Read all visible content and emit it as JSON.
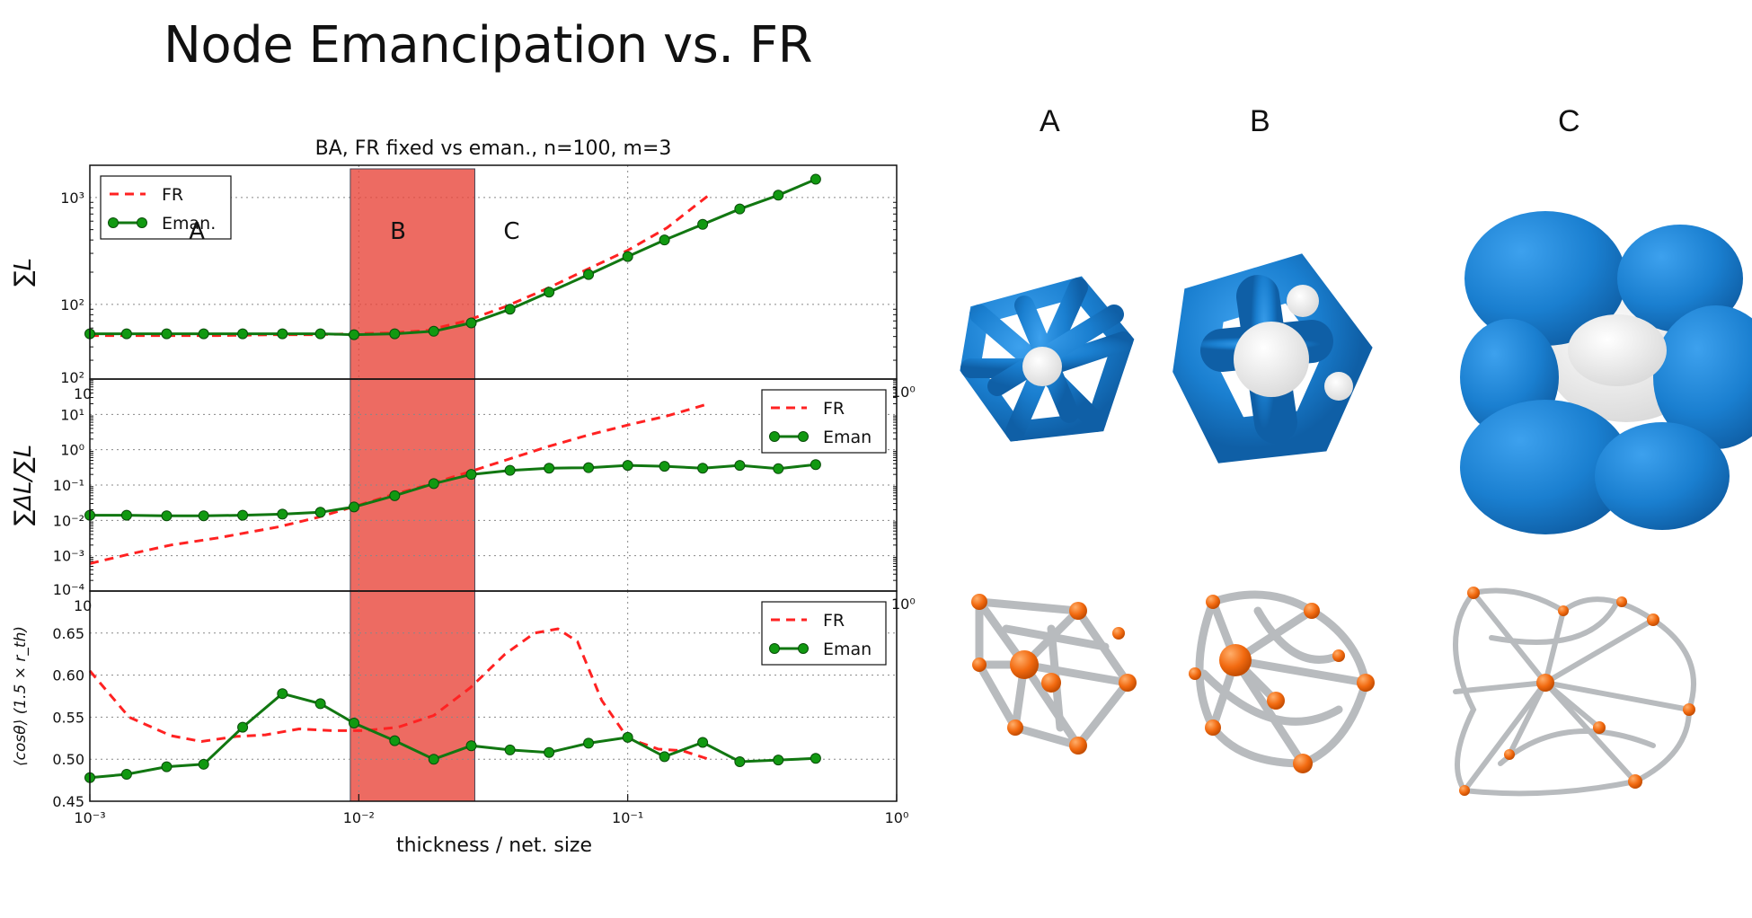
{
  "slide": {
    "title": "Node Emancipation vs. FR"
  },
  "chart_data": [
    {
      "type": "line",
      "title": "BA, FR fixed vs eman., n=100, m=3",
      "ylabel": "∑L",
      "yscale": "log",
      "xscale": "log",
      "xlim": [
        0.001,
        1
      ],
      "ylim": [
        20,
        2000
      ],
      "yticks": [
        "10²",
        "10³"
      ],
      "yticks_extra": [
        "10²"
      ],
      "xticks_overlap": [
        "10",
        "10⁰"
      ],
      "legend": "top-left",
      "regions": [
        {
          "label": "A",
          "x": 0.0025
        },
        {
          "label": "B",
          "x": 0.014
        },
        {
          "label": "C",
          "x": 0.037
        }
      ],
      "highlight": {
        "x0": 0.0093,
        "x1": 0.027
      },
      "series": [
        {
          "name": "FR",
          "style": "dashed",
          "color": "#ff2222",
          "x": [
            0.001,
            0.0014,
            0.002,
            0.003,
            0.005,
            0.007,
            0.0095,
            0.013,
            0.018,
            0.025,
            0.035,
            0.05,
            0.07,
            0.1,
            0.14,
            0.2
          ],
          "y": [
            51,
            51,
            51,
            51,
            52,
            52,
            53,
            54,
            57,
            70,
            95,
            140,
            210,
            320,
            520,
            1050
          ]
        },
        {
          "name": "Eman.",
          "style": "solid-marker",
          "color": "#117711",
          "x": [
            0.001,
            0.00137,
            0.00193,
            0.00265,
            0.0037,
            0.0052,
            0.0072,
            0.0096,
            0.0136,
            0.019,
            0.0262,
            0.0365,
            0.051,
            0.0715,
            0.1,
            0.137,
            0.19,
            0.261,
            0.363,
            0.5
          ],
          "y": [
            53,
            53,
            53,
            53,
            53,
            53,
            53,
            52,
            53,
            56,
            67,
            90,
            130,
            190,
            280,
            400,
            560,
            780,
            1050,
            1480
          ]
        }
      ]
    },
    {
      "type": "line",
      "ylabel": "∑ΔL/∑L",
      "yscale": "log",
      "xscale": "log",
      "xlim": [
        0.001,
        1
      ],
      "ylim": [
        0.0001,
        100
      ],
      "yticks": [
        "10⁻³",
        "10⁻²",
        "10⁻¹",
        "10⁰",
        "10¹"
      ],
      "yticks_extra": [
        "10⁻⁴"
      ],
      "xticks_overlap": [
        "10",
        "10⁰"
      ],
      "legend": "top-right",
      "series": [
        {
          "name": "FR",
          "style": "dashed",
          "color": "#ff2222",
          "x": [
            0.001,
            0.0014,
            0.002,
            0.003,
            0.005,
            0.007,
            0.0095,
            0.013,
            0.018,
            0.025,
            0.035,
            0.05,
            0.07,
            0.1,
            0.14,
            0.2
          ],
          "y": [
            0.0006,
            0.0011,
            0.002,
            0.0032,
            0.0065,
            0.012,
            0.024,
            0.05,
            0.1,
            0.22,
            0.5,
            1.2,
            2.5,
            5,
            9,
            20
          ]
        },
        {
          "name": "Eman",
          "style": "solid-marker",
          "color": "#117711",
          "x": [
            0.001,
            0.00137,
            0.00193,
            0.00265,
            0.0037,
            0.0052,
            0.0072,
            0.0096,
            0.0136,
            0.019,
            0.0262,
            0.0365,
            0.051,
            0.0715,
            0.1,
            0.137,
            0.19,
            0.261,
            0.363,
            0.5
          ],
          "y": [
            0.014,
            0.014,
            0.0135,
            0.0135,
            0.014,
            0.015,
            0.017,
            0.024,
            0.05,
            0.11,
            0.2,
            0.26,
            0.3,
            0.31,
            0.36,
            0.34,
            0.3,
            0.36,
            0.29,
            0.38
          ]
        }
      ]
    },
    {
      "type": "line",
      "ylabel": "⟨cosθ⟩ (1.5 × r_th)",
      "xlabel": "thickness / net. size",
      "xscale": "log",
      "xlim": [
        0.001,
        1
      ],
      "ylim": [
        0.45,
        0.7
      ],
      "yticks": [
        "0.45",
        "0.50",
        "0.55",
        "0.60",
        "0.65"
      ],
      "xticks": [
        "10⁻³",
        "10⁻²",
        "10⁻¹",
        "10⁰"
      ],
      "legend": "top-right",
      "series": [
        {
          "name": "FR",
          "style": "dashed",
          "color": "#ff2222",
          "x": [
            0.001,
            0.0014,
            0.002,
            0.0026,
            0.0035,
            0.0045,
            0.006,
            0.008,
            0.0105,
            0.014,
            0.019,
            0.026,
            0.035,
            0.045,
            0.055,
            0.065,
            0.08,
            0.1,
            0.13,
            0.16,
            0.2
          ],
          "y": [
            0.605,
            0.55,
            0.528,
            0.521,
            0.527,
            0.529,
            0.536,
            0.534,
            0.534,
            0.538,
            0.552,
            0.585,
            0.625,
            0.65,
            0.655,
            0.64,
            0.57,
            0.525,
            0.512,
            0.51,
            0.5
          ]
        },
        {
          "name": "Eman",
          "style": "solid-marker",
          "color": "#117711",
          "x": [
            0.001,
            0.00137,
            0.00193,
            0.00265,
            0.0037,
            0.0052,
            0.0072,
            0.0096,
            0.0136,
            0.019,
            0.0262,
            0.0365,
            0.051,
            0.0715,
            0.1,
            0.137,
            0.19,
            0.261,
            0.363,
            0.5
          ],
          "y": [
            0.478,
            0.482,
            0.491,
            0.494,
            0.538,
            0.578,
            0.566,
            0.543,
            0.522,
            0.5,
            0.516,
            0.511,
            0.508,
            0.519,
            0.526,
            0.503,
            0.52,
            0.497,
            0.499,
            0.501
          ]
        }
      ]
    }
  ],
  "renders": {
    "labels": [
      "A",
      "B",
      "C"
    ]
  },
  "colors": {
    "node_blue": "#1a7fd0",
    "node_white": "#f2f2f2",
    "link_grey": "#b8bbbe",
    "node_orange": "#f26a10",
    "highlight_red": "#e8463b"
  }
}
